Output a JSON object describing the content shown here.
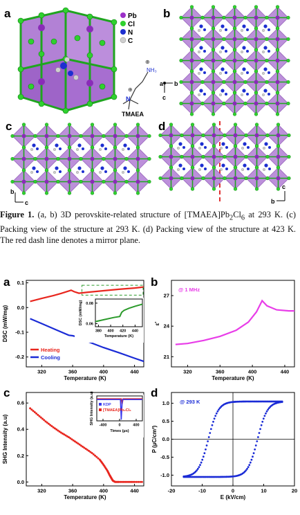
{
  "figure1": {
    "panel_labels": [
      "a",
      "b",
      "c",
      "d"
    ],
    "legend": [
      {
        "symbol": "Pb",
        "color": "#9b30c8"
      },
      {
        "symbol": "Cl",
        "color": "#2fd12f"
      },
      {
        "symbol": "N",
        "color": "#1d2fd0"
      },
      {
        "symbol": "C",
        "color": "#d0d0d0"
      }
    ],
    "molecule_label": "TMAEA",
    "nh3_label": "NH₃",
    "plus_sign": "⊕",
    "axes_b": {
      "a": "a",
      "b": "b",
      "c": "c"
    },
    "axes_c": {
      "b": "b",
      "c": "c"
    },
    "axes_d": {
      "b": "b",
      "c": "c"
    },
    "colors": {
      "octahedron": "#b585d6",
      "octahedron_edge": "#7a3aa8",
      "pb": "#8a2bb8",
      "cl": "#2fd12f",
      "n": "#1d2fd0",
      "c": "#cfcfcf",
      "mirror": "#e03030"
    }
  },
  "caption": {
    "label": "Figure 1.",
    "text_parts": [
      " (a, b) 3D perovskite-related structure of [TMAEA]Pb",
      "2",
      "Cl",
      "6",
      " at 293 K. (c) Packing view of the structure at 293 K. (d) Packing view of the structure at 423 K. The red dash line denotes a mirror plane."
    ]
  },
  "figure2": {
    "panel_labels": [
      "a",
      "b",
      "c",
      "d"
    ],
    "chart_data": [
      {
        "panel": "a",
        "type": "line",
        "xlabel": "Temperature (K)",
        "ylabel": "DSC (mW/mg)",
        "xlim": [
          300,
          452
        ],
        "ylim": [
          -0.24,
          0.11
        ],
        "xticks": [
          320,
          360,
          400,
          440
        ],
        "yticks": [
          -0.2,
          -0.1,
          0.0,
          0.1
        ],
        "xtick_labels": [
          "320",
          "360",
          "400",
          "440"
        ],
        "ytick_labels": [
          "-0.2",
          "-0.1",
          "0.0",
          "0.1"
        ],
        "series": [
          {
            "name": "Heating",
            "color": "#e8261e",
            "x": [
              305,
              320,
              335,
              345,
              352,
              358,
              362,
              368,
              380,
              400,
              420,
              440,
              452
            ],
            "y": [
              0.025,
              0.037,
              0.048,
              0.057,
              0.064,
              0.07,
              0.064,
              0.058,
              0.062,
              0.068,
              0.074,
              0.079,
              0.083
            ]
          },
          {
            "name": "Cooling",
            "color": "#1a2bd6",
            "x": [
              305,
              320,
              340,
              355,
              360,
              365,
              380,
              400,
              420,
              440,
              452
            ],
            "y": [
              -0.045,
              -0.065,
              -0.092,
              -0.112,
              -0.114,
              -0.118,
              -0.138,
              -0.162,
              -0.183,
              -0.205,
              -0.218
            ]
          }
        ],
        "inset": {
          "xlabel": "Temperature (K)",
          "ylabel": "DSC (mW/mg)",
          "xlim": [
            375,
            452
          ],
          "ylim": [
            0.057,
            0.084
          ],
          "xticks": [
            380,
            400,
            420,
            440
          ],
          "yticks": [
            0.06,
            0.08
          ],
          "xtick_labels": [
            "380",
            "400",
            "420",
            "440"
          ],
          "ytick_labels": [
            "0.06",
            "0.08"
          ],
          "x": [
            375,
            390,
            405,
            415,
            418,
            422,
            430,
            440,
            452
          ],
          "y": [
            0.062,
            0.064,
            0.066,
            0.067,
            0.071,
            0.073,
            0.075,
            0.077,
            0.079
          ],
          "color": "#2a9a2a"
        }
      },
      {
        "panel": "b",
        "type": "line",
        "annotation": "@ 1 MHz",
        "xlabel": "Temperature (K)",
        "ylabel": "ε'",
        "xlim": [
          300,
          452
        ],
        "ylim": [
          20,
          28.5
        ],
        "xticks": [
          320,
          360,
          400,
          440
        ],
        "yticks": [
          21,
          24,
          27
        ],
        "xtick_labels": [
          "320",
          "360",
          "400",
          "440"
        ],
        "ytick_labels": [
          "21",
          "24",
          "27"
        ],
        "series": [
          {
            "name": "",
            "color": "#e83de8",
            "x": [
              305,
              320,
              340,
              360,
              380,
              395,
              405,
              412,
              418,
              430,
              445,
              452
            ],
            "y": [
              22.2,
              22.3,
              22.6,
              23.0,
              23.6,
              24.4,
              25.4,
              26.5,
              26.0,
              25.6,
              25.5,
              25.5
            ]
          }
        ]
      },
      {
        "panel": "c",
        "type": "scatter",
        "xlabel": "Temperature (K)",
        "ylabel": "SHG Intensity (a.u)",
        "xlim": [
          300,
          452
        ],
        "ylim": [
          -0.03,
          0.68
        ],
        "xticks": [
          320,
          360,
          400,
          440
        ],
        "yticks": [
          0.0,
          0.2,
          0.4,
          0.6
        ],
        "xtick_labels": [
          "320",
          "360",
          "400",
          "440"
        ],
        "ytick_labels": [
          "0.0",
          "0.2",
          "0.4",
          "0.6"
        ],
        "series": [
          {
            "name": "",
            "color": "#e8261e",
            "x": [
              305,
              315,
              325,
              335,
              345,
              355,
              365,
              375,
              385,
              395,
              400,
              405,
              408,
              410,
              412,
              415,
              420,
              430,
              440,
              452
            ],
            "y": [
              0.56,
              0.51,
              0.46,
              0.415,
              0.375,
              0.34,
              0.3,
              0.26,
              0.22,
              0.17,
              0.13,
              0.085,
              0.05,
              0.03,
              0.01,
              0.0,
              0.0,
              0.0,
              0.0,
              0.0
            ]
          }
        ],
        "inset": {
          "xlabel": "Times (µs)",
          "ylabel": "SHG Intensity (a.u)",
          "xlim": [
            -550,
            550
          ],
          "ylim": [
            0,
            1.05
          ],
          "xticks": [
            -400,
            0,
            400
          ],
          "xtick_labels": [
            "-400",
            "0",
            "400"
          ],
          "series": [
            {
              "name": "KDP",
              "color": "#3a3aee"
            },
            {
              "name": "[TMAEA]Pb₂Cl₆",
              "color": "#e8261e"
            }
          ]
        }
      },
      {
        "panel": "d",
        "type": "scatter",
        "annotation": "@ 293 K",
        "xlabel": "E (kV/cm)",
        "ylabel": "P (µC/cm²)",
        "xlim": [
          -20,
          20
        ],
        "ylim": [
          -1.3,
          1.3
        ],
        "xticks": [
          -20,
          -10,
          0,
          10,
          20
        ],
        "yticks": [
          -1.0,
          -0.5,
          0.0,
          0.5,
          1.0
        ],
        "xtick_labels": [
          "-20",
          "-10",
          "0",
          "10",
          "20"
        ],
        "ytick_labels": [
          "-1.0",
          "-0.5",
          "0.0",
          "0.5",
          "1.0"
        ],
        "series": [
          {
            "name": "",
            "color": "#1a2bd6",
            "coercive_field": 8,
            "saturation": 1.05,
            "max_field": 16
          }
        ]
      }
    ]
  }
}
